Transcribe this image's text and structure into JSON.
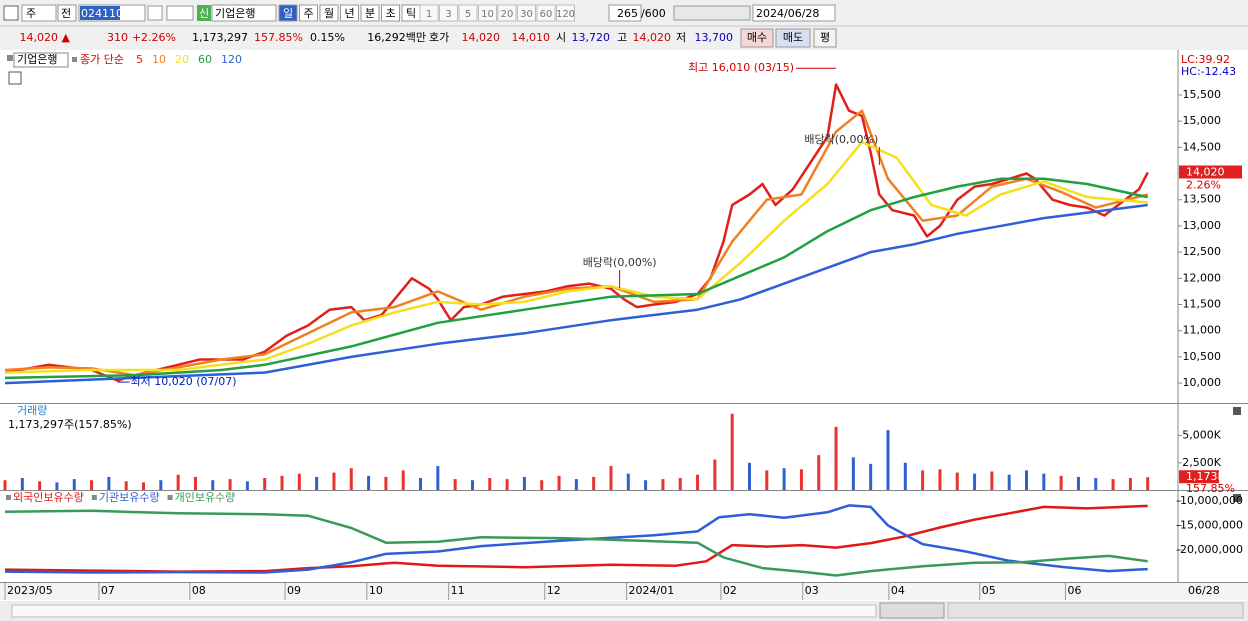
{
  "toolbar": {
    "market": "주",
    "mode": "전",
    "code": "024110",
    "credit": "신",
    "name": "기업은행",
    "periods": [
      "일",
      "주",
      "월",
      "년",
      "분",
      "초",
      "틱"
    ],
    "intervals": [
      "1",
      "3",
      "5",
      "10",
      "20",
      "30",
      "60",
      "120"
    ],
    "count": "265",
    "max": "/600",
    "date": "2024/06/28"
  },
  "quote": {
    "price": "14,020 ▲",
    "change": "310",
    "rate": "+2.26%",
    "volume": "1,173,297",
    "volume_ratio": "157.85%",
    "turnover": "0.15%",
    "amount": "16,292백만",
    "ask_label": "호가",
    "ask": "14,020",
    "bid": "14,010",
    "open_label": "시",
    "open": "13,720",
    "high_label": "고",
    "high": "14,020",
    "low_label": "저",
    "low": "13,700",
    "buttons": [
      "매수",
      "매도",
      "평"
    ]
  },
  "chart_data": [
    {
      "type": "line",
      "name": "기업은행",
      "label": "종가 단순",
      "xlim": [
        0,
        271
      ],
      "ylim": [
        9620,
        16320
      ],
      "yticks": [
        {
          "value": 10000,
          "label": "10,000"
        },
        {
          "value": 10500,
          "label": "10,500"
        },
        {
          "value": 11000,
          "label": "11,000"
        },
        {
          "value": 11500,
          "label": "11,500"
        },
        {
          "value": 12000,
          "label": "12,000"
        },
        {
          "value": 12500,
          "label": "12,500"
        },
        {
          "value": 13000,
          "label": "13,000"
        },
        {
          "value": 13500,
          "label": "13,500"
        },
        {
          "value": 14000,
          "label": "14,000"
        },
        {
          "value": 14500,
          "label": "14,500"
        },
        {
          "value": 15000,
          "label": "15,000"
        },
        {
          "value": 15500,
          "label": "15,500"
        }
      ],
      "series": [
        {
          "name": "5",
          "color": "#e0201c",
          "x": [
            0,
            10,
            20,
            26,
            30,
            40,
            45,
            55,
            60,
            65,
            70,
            75,
            80,
            83,
            87,
            92,
            94,
            98,
            100,
            103,
            106,
            110,
            115,
            120,
            125,
            130,
            135,
            140,
            143,
            146,
            150,
            155,
            160,
            163,
            166,
            168,
            172,
            175,
            178,
            182,
            186,
            190,
            192,
            195,
            198,
            200,
            202,
            205,
            210,
            213,
            216,
            220,
            224,
            228,
            232,
            236,
            238,
            242,
            246,
            250,
            254,
            258,
            262,
            264
          ],
          "values": [
            10200,
            10350,
            10250,
            10050,
            10150,
            10350,
            10450,
            10450,
            10600,
            10900,
            11100,
            11400,
            11450,
            11200,
            11300,
            11800,
            12000,
            11800,
            11600,
            11200,
            11450,
            11500,
            11650,
            11700,
            11750,
            11850,
            11900,
            11800,
            11600,
            11450,
            11500,
            11550,
            11700,
            12000,
            12700,
            13400,
            13600,
            13800,
            13400,
            13700,
            14200,
            14700,
            15700,
            15200,
            15100,
            14400,
            13600,
            13300,
            13200,
            12800,
            13000,
            13500,
            13750,
            13800,
            13900,
            14000,
            13900,
            13500,
            13400,
            13350,
            13200,
            13450,
            13700,
            14020
          ]
        },
        {
          "name": "10",
          "color": "#f08020",
          "x": [
            0,
            10,
            20,
            30,
            40,
            50,
            60,
            70,
            80,
            90,
            100,
            110,
            120,
            130,
            140,
            150,
            160,
            168,
            176,
            184,
            192,
            198,
            204,
            212,
            220,
            228,
            236,
            244,
            252,
            264
          ],
          "values": [
            10250,
            10300,
            10280,
            10150,
            10300,
            10450,
            10550,
            10950,
            11350,
            11450,
            11750,
            11400,
            11650,
            11800,
            11850,
            11550,
            11600,
            12700,
            13500,
            13600,
            14800,
            15200,
            13900,
            13100,
            13200,
            13750,
            13900,
            13650,
            13350,
            13600
          ]
        },
        {
          "name": "20",
          "color": "#f5e020",
          "x": [
            0,
            20,
            40,
            60,
            70,
            80,
            90,
            100,
            110,
            120,
            130,
            140,
            150,
            160,
            170,
            180,
            190,
            198,
            206,
            214,
            222,
            230,
            240,
            250,
            264
          ],
          "values": [
            10200,
            10250,
            10250,
            10450,
            10750,
            11100,
            11350,
            11550,
            11500,
            11550,
            11750,
            11850,
            11650,
            11600,
            12300,
            13100,
            13800,
            14600,
            14300,
            13400,
            13200,
            13600,
            13850,
            13550,
            13450
          ]
        },
        {
          "name": "60",
          "color": "#20a040",
          "x": [
            0,
            30,
            50,
            60,
            80,
            100,
            120,
            140,
            160,
            170,
            180,
            190,
            200,
            210,
            220,
            230,
            240,
            250,
            264
          ],
          "values": [
            10100,
            10150,
            10250,
            10350,
            10700,
            11150,
            11400,
            11650,
            11700,
            12050,
            12400,
            12900,
            13300,
            13550,
            13750,
            13900,
            13900,
            13800,
            13550
          ]
        },
        {
          "name": "120",
          "color": "#2f5fd8",
          "x": [
            0,
            30,
            60,
            80,
            100,
            120,
            140,
            160,
            170,
            180,
            190,
            200,
            210,
            220,
            240,
            264
          ],
          "values": [
            10000,
            10100,
            10200,
            10500,
            10750,
            10950,
            11200,
            11400,
            11600,
            11900,
            12200,
            12500,
            12650,
            12850,
            13150,
            13400
          ]
        }
      ],
      "annotations": [
        {
          "text": "최고 16,010 (03/15)",
          "x": 192,
          "y": 16010,
          "color": "#d00000"
        },
        {
          "text": "최저 10,020 (07/07)",
          "x": 26,
          "y": 10020,
          "color": "#0020c0"
        },
        {
          "text": "배당락(0,00%)",
          "x": 142,
          "y": 11814,
          "color": "#333333"
        },
        {
          "text": "배당락(0,00%)",
          "x": 202,
          "y": 14163,
          "color": "#333333"
        }
      ],
      "right_labels": {
        "lc": "LC:39.92",
        "hc": "HC:-12.43",
        "last": "14,020",
        "last_value": 14020,
        "rate": "2.26%"
      }
    },
    {
      "type": "bar",
      "label": "거래량",
      "info": "1,173,297주(157.85%)",
      "xlim": [
        0,
        271
      ],
      "ylim": [
        0,
        7900
      ],
      "yticks": [
        {
          "value": 2500,
          "label": "2,500K"
        },
        {
          "value": 5000,
          "label": "5,000K"
        }
      ],
      "x": [
        0,
        4,
        8,
        12,
        16,
        20,
        24,
        28,
        32,
        36,
        40,
        44,
        48,
        52,
        56,
        60,
        64,
        68,
        72,
        76,
        80,
        84,
        88,
        92,
        96,
        100,
        104,
        108,
        112,
        116,
        120,
        124,
        128,
        132,
        136,
        140,
        144,
        148,
        152,
        156,
        160,
        164,
        168,
        172,
        176,
        180,
        184,
        188,
        192,
        196,
        200,
        204,
        208,
        212,
        216,
        220,
        224,
        228,
        232,
        236,
        240,
        244,
        248,
        252,
        256,
        260,
        264
      ],
      "values": [
        900,
        1100,
        800,
        700,
        1000,
        900,
        1200,
        800,
        700,
        900,
        1400,
        1200,
        900,
        1000,
        800,
        1100,
        1300,
        1500,
        1200,
        1600,
        2000,
        1300,
        1200,
        1800,
        1100,
        2200,
        1000,
        900,
        1100,
        1000,
        1200,
        900,
        1300,
        1000,
        1200,
        2200,
        1500,
        900,
        1000,
        1100,
        1400,
        2800,
        7000,
        2500,
        1800,
        2000,
        1900,
        3200,
        5800,
        3000,
        2400,
        5500,
        2500,
        1800,
        1900,
        1600,
        1500,
        1700,
        1400,
        1800,
        1500,
        1300,
        1200,
        1100,
        1000,
        1100,
        1173
      ],
      "colors": [
        "#e8322c",
        "#2f5fd0",
        "#e8322c",
        "#2f5fd0",
        "#2f5fd0",
        "#e8322c",
        "#2f5fd0",
        "#e8322c",
        "#e8322c",
        "#2f5fd0",
        "#e8322c",
        "#e8322c",
        "#2f5fd0",
        "#e8322c",
        "#2f5fd0",
        "#e8322c",
        "#e8322c",
        "#e8322c",
        "#2f5fd0",
        "#e8322c",
        "#e8322c",
        "#2f5fd0",
        "#e8322c",
        "#e8322c",
        "#2f5fd0",
        "#2f5fd0",
        "#e8322c",
        "#2f5fd0",
        "#e8322c",
        "#e8322c",
        "#2f5fd0",
        "#e8322c",
        "#e8322c",
        "#2f5fd0",
        "#e8322c",
        "#e8322c",
        "#2f5fd0",
        "#2f5fd0",
        "#e8322c",
        "#e8322c",
        "#e8322c",
        "#e8322c",
        "#e8322c",
        "#2f5fd0",
        "#e8322c",
        "#2f5fd0",
        "#e8322c",
        "#e8322c",
        "#e8322c",
        "#2f5fd0",
        "#2f5fd0",
        "#2f5fd0",
        "#2f5fd0",
        "#e8322c",
        "#e8322c",
        "#e8322c",
        "#2f5fd0",
        "#e8322c",
        "#2f5fd0",
        "#2f5fd0",
        "#2f5fd0",
        "#e8322c",
        "#2f5fd0",
        "#2f5fd0",
        "#e8322c",
        "#e8322c",
        "#e8322c"
      ],
      "right_labels": {
        "last": "1,173K",
        "rate": "157.85%"
      }
    },
    {
      "type": "line",
      "xlim": [
        0,
        271
      ],
      "ylim": [
        -26530000,
        -8160000
      ],
      "yticks": [
        {
          "value": -10000000,
          "label": "-10,000,000"
        },
        {
          "value": -15000000,
          "label": "-15,000,000"
        },
        {
          "value": -20000000,
          "label": "-20,000,000"
        }
      ],
      "xticks": [
        {
          "value": 0,
          "label": "2023/05"
        },
        {
          "value": 21.7,
          "label": "07"
        },
        {
          "value": 42.7,
          "label": "08"
        },
        {
          "value": 64.7,
          "label": "09"
        },
        {
          "value": 83.6,
          "label": "10"
        },
        {
          "value": 102.5,
          "label": "11"
        },
        {
          "value": 124.7,
          "label": "12"
        },
        {
          "value": 143.6,
          "label": "2024/01"
        },
        {
          "value": 165.4,
          "label": "02"
        },
        {
          "value": 184.3,
          "label": "03"
        },
        {
          "value": 204.2,
          "label": "04"
        },
        {
          "value": 225.2,
          "label": "05"
        },
        {
          "value": 245,
          "label": "06"
        }
      ],
      "x_end_label": "06/28",
      "series": [
        {
          "name": "외국인보유수량",
          "color": "#e01818",
          "x": [
            0,
            20,
            40,
            60,
            70,
            80,
            90,
            100,
            120,
            140,
            155,
            162,
            168,
            176,
            184,
            192,
            200,
            208,
            216,
            224,
            232,
            240,
            250,
            264
          ],
          "values": [
            -24000000,
            -24200000,
            -24400000,
            -24300000,
            -23700000,
            -23300000,
            -22600000,
            -23200000,
            -23500000,
            -23000000,
            -23200000,
            -22300000,
            -19000000,
            -19300000,
            -19000000,
            -19500000,
            -18600000,
            -17200000,
            -15400000,
            -13800000,
            -12500000,
            -11200000,
            -11500000,
            -11000000
          ]
        },
        {
          "name": "기관보유수량",
          "color": "#2f5fd8",
          "x": [
            0,
            20,
            40,
            60,
            70,
            80,
            88,
            100,
            110,
            130,
            150,
            160,
            165,
            172,
            180,
            190,
            195,
            200,
            204,
            212,
            222,
            232,
            245,
            255,
            264
          ],
          "values": [
            -24400000,
            -24600000,
            -24500000,
            -24600000,
            -24000000,
            -22500000,
            -20800000,
            -20300000,
            -19200000,
            -18000000,
            -17000000,
            -16200000,
            -13300000,
            -12700000,
            -13400000,
            -12300000,
            -10900000,
            -11200000,
            -15000000,
            -18800000,
            -20300000,
            -22200000,
            -23500000,
            -24300000,
            -23900000
          ]
        },
        {
          "name": "개인보유수량",
          "color": "#3a9a5a",
          "x": [
            0,
            20,
            40,
            60,
            70,
            80,
            88,
            100,
            110,
            130,
            150,
            160,
            166,
            175,
            185,
            192,
            200,
            212,
            224,
            235,
            245,
            255,
            264
          ],
          "values": [
            -12200000,
            -12000000,
            -12500000,
            -12700000,
            -13000000,
            -15500000,
            -18500000,
            -18300000,
            -17400000,
            -17600000,
            -18200000,
            -18500000,
            -21500000,
            -23700000,
            -24500000,
            -25200000,
            -24300000,
            -23300000,
            -22600000,
            -22500000,
            -21800000,
            -21200000,
            -22300000
          ]
        }
      ]
    }
  ]
}
